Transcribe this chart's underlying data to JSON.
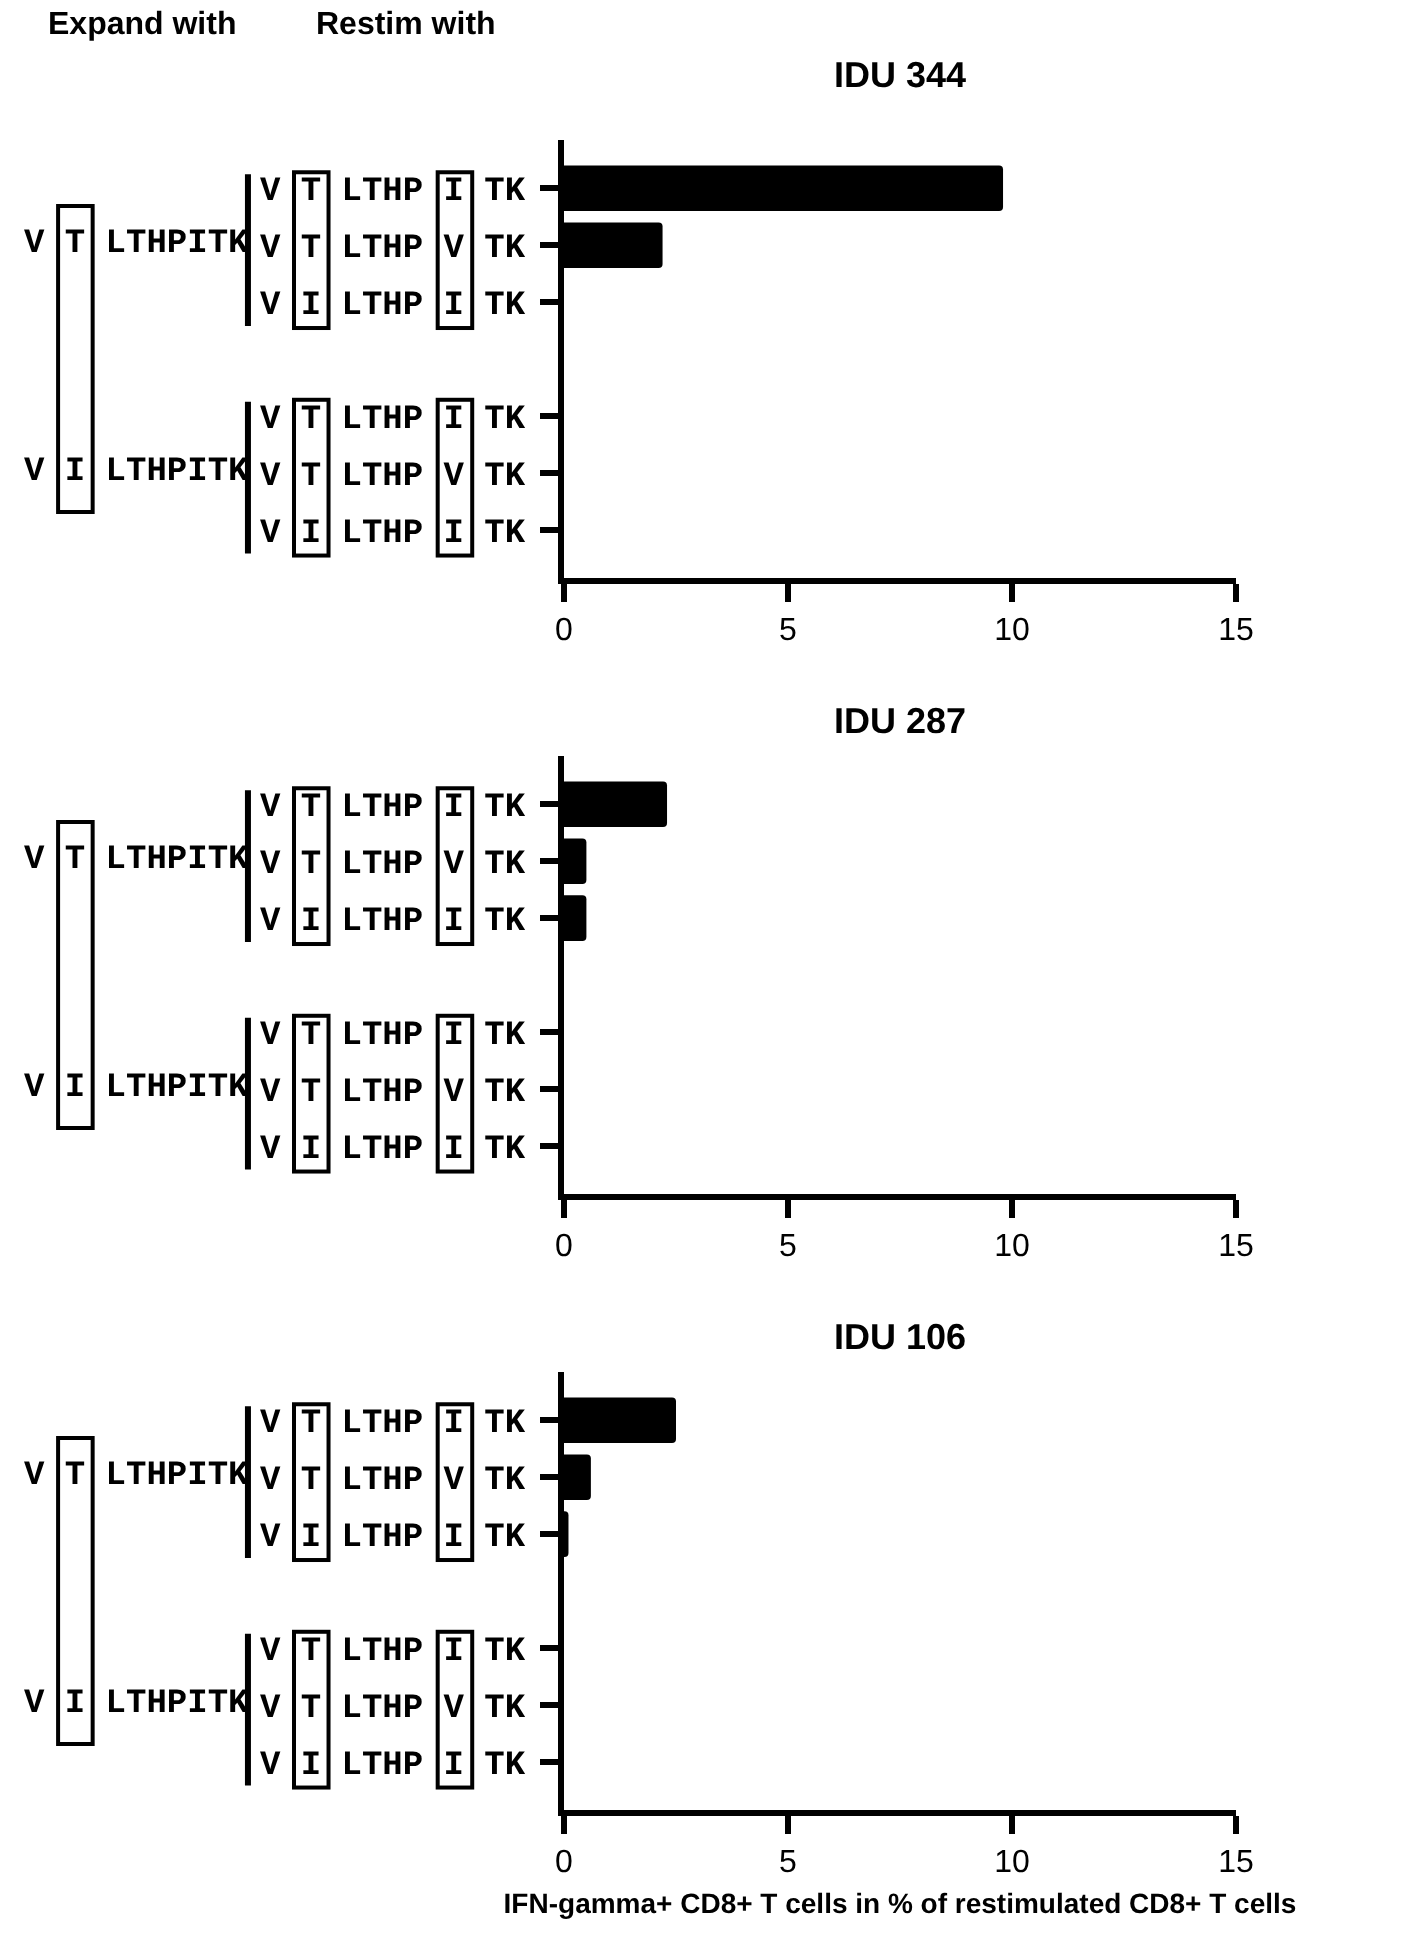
{
  "chart_data": [
    {
      "type": "bar",
      "orientation": "horizontal",
      "title": "IDU 344",
      "categories": [
        "V T LTHP I TK",
        "V T LTHP V TK",
        "V I LTHP I TK",
        null,
        "V T LTHP I TK",
        "V T LTHP V TK",
        "V I LTHP I TK"
      ],
      "values": [
        9.8,
        2.2,
        0,
        null,
        0,
        0,
        0
      ],
      "color": "#000000",
      "xlim": [
        0,
        15
      ],
      "xticks": [
        0,
        5,
        10,
        15
      ],
      "annotations": [
        "Expand with",
        "Restim with",
        "V T LTHPITK",
        "V I LTHPITK"
      ]
    },
    {
      "type": "bar",
      "orientation": "horizontal",
      "title": "IDU 287",
      "categories": [
        "V T LTHP I TK",
        "V T LTHP V TK",
        "V I LTHP I TK",
        null,
        "V T LTHP I TK",
        "V T LTHP V TK",
        "V I LTHP I TK"
      ],
      "values": [
        2.3,
        0.5,
        0.5,
        null,
        0,
        0,
        0
      ],
      "color": "#000000",
      "xlim": [
        0,
        15
      ],
      "xticks": [
        0,
        5,
        10,
        15
      ],
      "annotations": [
        "V T LTHPITK",
        "V I LTHPITK"
      ]
    },
    {
      "type": "bar",
      "orientation": "horizontal",
      "title": "IDU 106",
      "categories": [
        "V T LTHP I TK",
        "V T LTHP V TK",
        "V I LTHP I TK",
        null,
        "V T LTHP I TK",
        "V T LTHP V TK",
        "V I LTHP I TK"
      ],
      "values": [
        2.5,
        0.6,
        0.1,
        null,
        0,
        0,
        0
      ],
      "color": "#000000",
      "xlim": [
        0,
        15
      ],
      "xticks": [
        0,
        5,
        10,
        15
      ],
      "xlabel": "IFN-gamma+ CD8+ T cells in % of restimulated CD8+ T cells",
      "annotations": [
        "V T LTHPITK",
        "V I LTHPITK"
      ]
    }
  ]
}
